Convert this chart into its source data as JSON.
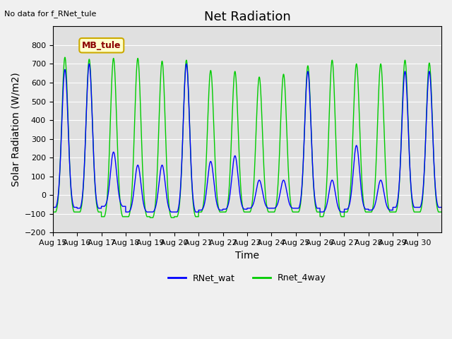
{
  "title": "Net Radiation",
  "xlabel": "Time",
  "ylabel": "Solar Radiation (W/m2)",
  "top_left_text": "No data for f_RNet_tule",
  "legend_label_text": "MB_tule",
  "series_labels": [
    "RNet_wat",
    "Rnet_4way"
  ],
  "series_colors": [
    "blue",
    "#00cc00"
  ],
  "ylim": [
    -200,
    900
  ],
  "yticks": [
    -200,
    -100,
    0,
    100,
    200,
    300,
    400,
    500,
    600,
    700,
    800
  ],
  "x_tick_labels": [
    "Aug 15",
    "Aug 16",
    "Aug 17",
    "Aug 18",
    "Aug 19",
    "Aug 20",
    "Aug 21",
    "Aug 22",
    "Aug 23",
    "Aug 24",
    "Aug 25",
    "Aug 26",
    "Aug 27",
    "Aug 28",
    "Aug 29",
    "Aug 30"
  ],
  "n_days": 16,
  "background_color": "#e0e0e0",
  "fig_facecolor": "#f0f0f0",
  "title_fontsize": 13,
  "axis_label_fontsize": 10,
  "tick_fontsize": 8,
  "day_peaks_rnet_wat": [
    670,
    700,
    230,
    160,
    160,
    700,
    180,
    210,
    80,
    80,
    660,
    80,
    265,
    80,
    660,
    660
  ],
  "day_peaks_rnet_4way": [
    735,
    725,
    730,
    730,
    715,
    720,
    665,
    660,
    630,
    645,
    690,
    720,
    700,
    700,
    720,
    705
  ],
  "day_nights_rnet_wat": [
    -65,
    -70,
    -60,
    -90,
    -90,
    -90,
    -80,
    -75,
    -70,
    -70,
    -70,
    -90,
    -75,
    -80,
    -65,
    -65
  ],
  "day_nights_rnet_4way": [
    -90,
    -90,
    -115,
    -115,
    -120,
    -115,
    -90,
    -90,
    -90,
    -90,
    -90,
    -115,
    -90,
    -90,
    -90,
    -90
  ]
}
